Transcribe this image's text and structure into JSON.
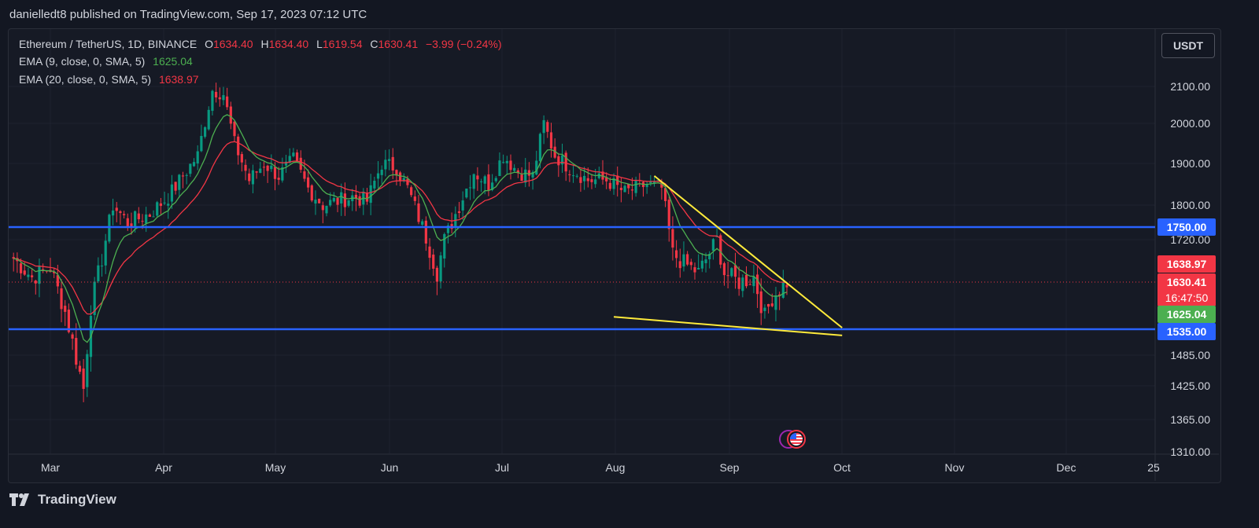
{
  "publisher": "danielledt8 published on TradingView.com, Sep 17, 2023 07:12 UTC",
  "legend": {
    "symbol": "Ethereum / TetherUS, 1D, BINANCE",
    "o_label": "O",
    "o_val": "1634.40",
    "h_label": "H",
    "h_val": "1634.40",
    "l_label": "L",
    "l_val": "1619.54",
    "c_label": "C",
    "c_val": "1630.41",
    "change": "−3.99 (−0.24%)",
    "ema9_label": "EMA (9, close, 0, SMA, 5)",
    "ema9_val": "1625.04",
    "ema20_label": "EMA (20, close, 0, SMA, 5)",
    "ema20_val": "1638.97"
  },
  "currency_button": "USDT",
  "brand": "TradingView",
  "colors": {
    "background": "#131722",
    "up": "#089981",
    "down": "#f23645",
    "ema9": "#4caf50",
    "ema20": "#f23645",
    "level": "#2962ff",
    "trendline": "#ffeb3b"
  },
  "icons": [
    "tradingview-logo-icon",
    "us-flag-event-icon"
  ],
  "chart_data": {
    "type": "candlestick",
    "symbol": "Ethereum / TetherUS",
    "timeframe": "1D",
    "exchange": "BINANCE",
    "x_ticks": [
      "Mar",
      "Apr",
      "May",
      "Jun",
      "Jul",
      "Aug",
      "Sep",
      "Oct",
      "Nov",
      "Dec",
      "25"
    ],
    "y_ticks": [
      "2100.00",
      "2000.00",
      "1900.00",
      "1800.00",
      "1720.00",
      "1485.00",
      "1425.00",
      "1365.00",
      "1310.00"
    ],
    "price_labels": [
      {
        "text": "1750.00",
        "value": 1750,
        "color": "#2962ff"
      },
      {
        "text": "1638.97",
        "value": 1638.97,
        "color": "#f23645"
      },
      {
        "text": "1630.41",
        "value": 1630.41,
        "color": "#f23645",
        "sub": "16:47:50"
      },
      {
        "text": "1625.04",
        "value": 1625.04,
        "color": "#4caf50"
      },
      {
        "text": "1535.00",
        "value": 1535,
        "color": "#2962ff"
      }
    ],
    "horizontal_levels": [
      1750,
      1535
    ],
    "trendlines": [
      {
        "from": [
          "2023-08-12",
          1870
        ],
        "to": [
          "2023-10-02",
          1538
        ]
      },
      {
        "from": [
          "2023-08-01",
          1560
        ],
        "to": [
          "2023-10-02",
          1523
        ]
      }
    ],
    "series": [
      {
        "name": "EMA (9, close, 0, SMA, 5)",
        "last": 1625.04
      },
      {
        "name": "EMA (20, close, 0, SMA, 5)",
        "last": 1638.97
      }
    ],
    "close_path": [
      [
        "2023-02-19",
        1680
      ],
      [
        "2023-02-24",
        1640
      ],
      [
        "2023-03-01",
        1660
      ],
      [
        "2023-03-05",
        1570
      ],
      [
        "2023-03-10",
        1420
      ],
      [
        "2023-03-12",
        1580
      ],
      [
        "2023-03-15",
        1680
      ],
      [
        "2023-03-18",
        1800
      ],
      [
        "2023-03-22",
        1760
      ],
      [
        "2023-03-28",
        1780
      ],
      [
        "2023-04-02",
        1820
      ],
      [
        "2023-04-06",
        1870
      ],
      [
        "2023-04-10",
        1920
      ],
      [
        "2023-04-14",
        2090
      ],
      [
        "2023-04-17",
        2080
      ],
      [
        "2023-04-20",
        1950
      ],
      [
        "2023-04-24",
        1860
      ],
      [
        "2023-04-28",
        1900
      ],
      [
        "2023-05-02",
        1870
      ],
      [
        "2023-05-06",
        1910
      ],
      [
        "2023-05-10",
        1840
      ],
      [
        "2023-05-14",
        1800
      ],
      [
        "2023-05-18",
        1810
      ],
      [
        "2023-05-22",
        1820
      ],
      [
        "2023-05-26",
        1810
      ],
      [
        "2023-05-30",
        1900
      ],
      [
        "2023-06-03",
        1890
      ],
      [
        "2023-06-06",
        1840
      ],
      [
        "2023-06-10",
        1750
      ],
      [
        "2023-06-14",
        1650
      ],
      [
        "2023-06-16",
        1720
      ],
      [
        "2023-06-20",
        1800
      ],
      [
        "2023-06-24",
        1880
      ],
      [
        "2023-06-28",
        1850
      ],
      [
        "2023-07-02",
        1920
      ],
      [
        "2023-07-06",
        1880
      ],
      [
        "2023-07-10",
        1870
      ],
      [
        "2023-07-13",
        2000
      ],
      [
        "2023-07-16",
        1920
      ],
      [
        "2023-07-20",
        1890
      ],
      [
        "2023-07-25",
        1860
      ],
      [
        "2023-07-30",
        1860
      ],
      [
        "2023-08-04",
        1830
      ],
      [
        "2023-08-10",
        1850
      ],
      [
        "2023-08-14",
        1840
      ],
      [
        "2023-08-17",
        1690
      ],
      [
        "2023-08-20",
        1670
      ],
      [
        "2023-08-24",
        1650
      ],
      [
        "2023-08-29",
        1720
      ],
      [
        "2023-08-31",
        1650
      ],
      [
        "2023-09-04",
        1630
      ],
      [
        "2023-09-08",
        1640
      ],
      [
        "2023-09-11",
        1560
      ],
      [
        "2023-09-13",
        1600
      ],
      [
        "2023-09-17",
        1630
      ]
    ]
  }
}
